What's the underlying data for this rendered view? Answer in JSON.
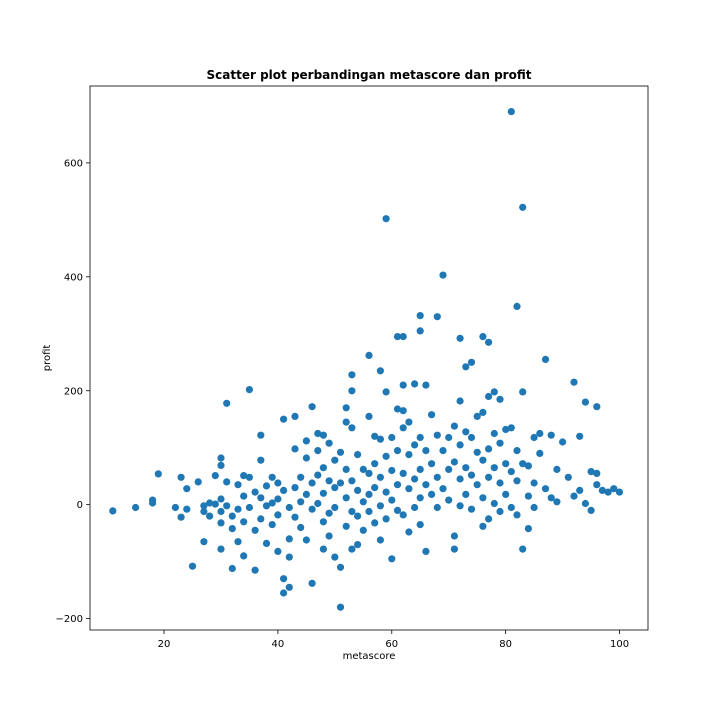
{
  "chart_data": {
    "type": "scatter",
    "title": "Scatter plot perbandingan metascore dan profit",
    "xlabel": "metascore",
    "ylabel": "profit",
    "xlim": [
      7,
      105
    ],
    "ylim": [
      -220,
      735
    ],
    "xticks": [
      20,
      40,
      60,
      80,
      100
    ],
    "yticks": [
      -200,
      0,
      200,
      400,
      600
    ],
    "grid": false,
    "legend": "none",
    "color": "#1f77b4",
    "points": [
      [
        11,
        -11
      ],
      [
        15,
        -5
      ],
      [
        18,
        8
      ],
      [
        18,
        3
      ],
      [
        19,
        54
      ],
      [
        22,
        -5
      ],
      [
        23,
        48
      ],
      [
        23,
        -22
      ],
      [
        24,
        28
      ],
      [
        24,
        -8
      ],
      [
        25,
        -108
      ],
      [
        26,
        40
      ],
      [
        27,
        -2
      ],
      [
        27,
        -12
      ],
      [
        27,
        -65
      ],
      [
        28,
        3
      ],
      [
        28,
        -20
      ],
      [
        29,
        51
      ],
      [
        29,
        1
      ],
      [
        30,
        82
      ],
      [
        30,
        69
      ],
      [
        30,
        10
      ],
      [
        30,
        -12
      ],
      [
        30,
        -32
      ],
      [
        30,
        -78
      ],
      [
        31,
        178
      ],
      [
        31,
        40
      ],
      [
        31,
        -2
      ],
      [
        32,
        -20
      ],
      [
        32,
        -42
      ],
      [
        32,
        -112
      ],
      [
        33,
        35
      ],
      [
        33,
        -8
      ],
      [
        33,
        -65
      ],
      [
        34,
        51
      ],
      [
        34,
        15
      ],
      [
        34,
        -30
      ],
      [
        34,
        -90
      ],
      [
        35,
        202
      ],
      [
        35,
        48
      ],
      [
        35,
        -5
      ],
      [
        36,
        22
      ],
      [
        36,
        -45
      ],
      [
        36,
        -115
      ],
      [
        37,
        122
      ],
      [
        37,
        78
      ],
      [
        37,
        12
      ],
      [
        37,
        -25
      ],
      [
        38,
        33
      ],
      [
        38,
        -2
      ],
      [
        38,
        -68
      ],
      [
        39,
        48
      ],
      [
        39,
        3
      ],
      [
        39,
        -35
      ],
      [
        40,
        38
      ],
      [
        40,
        10
      ],
      [
        40,
        -18
      ],
      [
        40,
        -82
      ],
      [
        41,
        150
      ],
      [
        41,
        25
      ],
      [
        41,
        -130
      ],
      [
        41,
        -155
      ],
      [
        42,
        -5
      ],
      [
        42,
        -60
      ],
      [
        42,
        -92
      ],
      [
        42,
        -145
      ],
      [
        43,
        155
      ],
      [
        43,
        98
      ],
      [
        43,
        30
      ],
      [
        43,
        -22
      ],
      [
        44,
        48
      ],
      [
        44,
        5
      ],
      [
        44,
        -40
      ],
      [
        45,
        112
      ],
      [
        45,
        82
      ],
      [
        45,
        18
      ],
      [
        45,
        -62
      ],
      [
        46,
        172
      ],
      [
        46,
        38
      ],
      [
        46,
        -8
      ],
      [
        46,
        -138
      ],
      [
        47,
        125
      ],
      [
        47,
        95
      ],
      [
        47,
        52
      ],
      [
        47,
        2
      ],
      [
        48,
        122
      ],
      [
        48,
        65
      ],
      [
        48,
        20
      ],
      [
        48,
        -30
      ],
      [
        48,
        -78
      ],
      [
        49,
        108
      ],
      [
        49,
        42
      ],
      [
        49,
        -15
      ],
      [
        49,
        -55
      ],
      [
        50,
        78
      ],
      [
        50,
        30
      ],
      [
        50,
        -5
      ],
      [
        50,
        -92
      ],
      [
        51,
        92
      ],
      [
        51,
        38
      ],
      [
        51,
        -110
      ],
      [
        51,
        -180
      ],
      [
        52,
        170
      ],
      [
        52,
        145
      ],
      [
        52,
        62
      ],
      [
        52,
        12
      ],
      [
        52,
        -38
      ],
      [
        53,
        228
      ],
      [
        53,
        200
      ],
      [
        53,
        135
      ],
      [
        53,
        42
      ],
      [
        53,
        -12
      ],
      [
        53,
        -78
      ],
      [
        54,
        88
      ],
      [
        54,
        25
      ],
      [
        54,
        -20
      ],
      [
        54,
        -70
      ],
      [
        55,
        62
      ],
      [
        55,
        5
      ],
      [
        55,
        -45
      ],
      [
        56,
        262
      ],
      [
        56,
        155
      ],
      [
        56,
        55
      ],
      [
        56,
        18
      ],
      [
        56,
        -12
      ],
      [
        57,
        120
      ],
      [
        57,
        72
      ],
      [
        57,
        30
      ],
      [
        57,
        -32
      ],
      [
        58,
        235
      ],
      [
        58,
        115
      ],
      [
        58,
        48
      ],
      [
        58,
        -2
      ],
      [
        58,
        -62
      ],
      [
        59,
        502
      ],
      [
        59,
        198
      ],
      [
        59,
        85
      ],
      [
        59,
        22
      ],
      [
        59,
        -25
      ],
      [
        60,
        118
      ],
      [
        60,
        60
      ],
      [
        60,
        8
      ],
      [
        60,
        -95
      ],
      [
        61,
        295
      ],
      [
        61,
        168
      ],
      [
        61,
        95
      ],
      [
        61,
        35
      ],
      [
        61,
        -10
      ],
      [
        62,
        295
      ],
      [
        62,
        210
      ],
      [
        62,
        165
      ],
      [
        62,
        135
      ],
      [
        62,
        55
      ],
      [
        62,
        -18
      ],
      [
        63,
        145
      ],
      [
        63,
        88
      ],
      [
        63,
        28
      ],
      [
        63,
        -48
      ],
      [
        64,
        212
      ],
      [
        64,
        105
      ],
      [
        64,
        45
      ],
      [
        64,
        -5
      ],
      [
        65,
        332
      ],
      [
        65,
        305
      ],
      [
        65,
        118
      ],
      [
        65,
        62
      ],
      [
        65,
        12
      ],
      [
        65,
        -35
      ],
      [
        66,
        210
      ],
      [
        66,
        95
      ],
      [
        66,
        35
      ],
      [
        66,
        -82
      ],
      [
        67,
        158
      ],
      [
        67,
        72
      ],
      [
        67,
        18
      ],
      [
        68,
        330
      ],
      [
        68,
        122
      ],
      [
        68,
        48
      ],
      [
        68,
        -5
      ],
      [
        69,
        403
      ],
      [
        69,
        95
      ],
      [
        69,
        28
      ],
      [
        70,
        118
      ],
      [
        70,
        62
      ],
      [
        70,
        8
      ],
      [
        71,
        138
      ],
      [
        71,
        75
      ],
      [
        71,
        -55
      ],
      [
        71,
        -78
      ],
      [
        72,
        292
      ],
      [
        72,
        182
      ],
      [
        72,
        105
      ],
      [
        72,
        45
      ],
      [
        72,
        -2
      ],
      [
        73,
        242
      ],
      [
        73,
        128
      ],
      [
        73,
        65
      ],
      [
        73,
        18
      ],
      [
        74,
        250
      ],
      [
        74,
        118
      ],
      [
        74,
        52
      ],
      [
        74,
        -8
      ],
      [
        75,
        155
      ],
      [
        75,
        92
      ],
      [
        75,
        35
      ],
      [
        76,
        295
      ],
      [
        76,
        162
      ],
      [
        76,
        78
      ],
      [
        76,
        12
      ],
      [
        76,
        -38
      ],
      [
        77,
        285
      ],
      [
        77,
        190
      ],
      [
        77,
        98
      ],
      [
        77,
        48
      ],
      [
        77,
        -25
      ],
      [
        78,
        198
      ],
      [
        78,
        125
      ],
      [
        78,
        65
      ],
      [
        78,
        2
      ],
      [
        79,
        185
      ],
      [
        79,
        108
      ],
      [
        79,
        38
      ],
      [
        79,
        -12
      ],
      [
        80,
        132
      ],
      [
        80,
        72
      ],
      [
        80,
        18
      ],
      [
        81,
        690
      ],
      [
        81,
        135
      ],
      [
        81,
        58
      ],
      [
        81,
        -5
      ],
      [
        82,
        348
      ],
      [
        82,
        95
      ],
      [
        82,
        42
      ],
      [
        82,
        -18
      ],
      [
        83,
        522
      ],
      [
        83,
        198
      ],
      [
        83,
        72
      ],
      [
        83,
        -78
      ],
      [
        84,
        68
      ],
      [
        84,
        15
      ],
      [
        84,
        -42
      ],
      [
        85,
        118
      ],
      [
        85,
        38
      ],
      [
        85,
        -5
      ],
      [
        86,
        125
      ],
      [
        86,
        90
      ],
      [
        87,
        255
      ],
      [
        87,
        28
      ],
      [
        88,
        122
      ],
      [
        88,
        12
      ],
      [
        89,
        62
      ],
      [
        89,
        5
      ],
      [
        90,
        110
      ],
      [
        91,
        48
      ],
      [
        92,
        215
      ],
      [
        92,
        15
      ],
      [
        93,
        120
      ],
      [
        93,
        25
      ],
      [
        94,
        180
      ],
      [
        94,
        2
      ],
      [
        95,
        58
      ],
      [
        95,
        -10
      ],
      [
        96,
        172
      ],
      [
        96,
        55
      ],
      [
        96,
        35
      ],
      [
        97,
        25
      ],
      [
        98,
        22
      ],
      [
        99,
        28
      ],
      [
        100,
        22
      ]
    ]
  }
}
